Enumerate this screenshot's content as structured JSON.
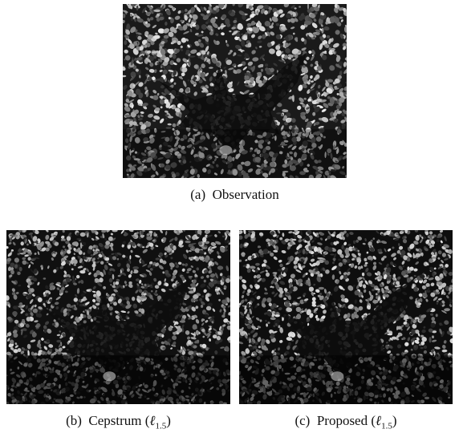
{
  "figure": {
    "panels": [
      {
        "label": "(a)",
        "caption": "Observation"
      },
      {
        "label": "(b)",
        "caption": "Cepstrum",
        "norm_symbol": "ℓ",
        "norm_subscript": "1.5"
      },
      {
        "label": "(c)",
        "caption": "Proposed",
        "norm_symbol": "ℓ",
        "norm_subscript": "1.5"
      }
    ]
  }
}
